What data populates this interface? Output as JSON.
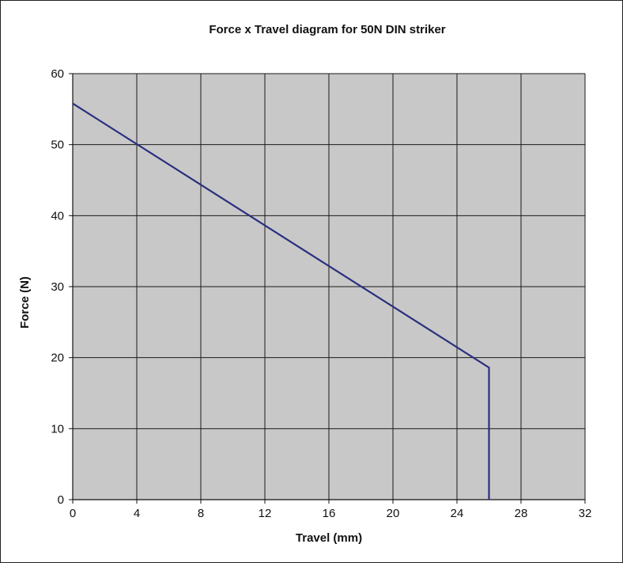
{
  "chart_data": {
    "type": "line",
    "title": "Force x Travel diagram for 50N DIN striker",
    "xlabel": "Travel (mm)",
    "ylabel": "Force (N)",
    "xlim": [
      0,
      32
    ],
    "ylim": [
      0,
      60
    ],
    "x_ticks": [
      0,
      4,
      8,
      12,
      16,
      20,
      24,
      28,
      32
    ],
    "y_ticks": [
      0,
      10,
      20,
      30,
      40,
      50,
      60
    ],
    "grid": true,
    "legend": "none",
    "plot_background": "#c8c8c8",
    "series": [
      {
        "color": "#2b2f7e",
        "x": [
          0,
          26,
          26
        ],
        "y": [
          55.8,
          18.6,
          0
        ]
      }
    ]
  }
}
